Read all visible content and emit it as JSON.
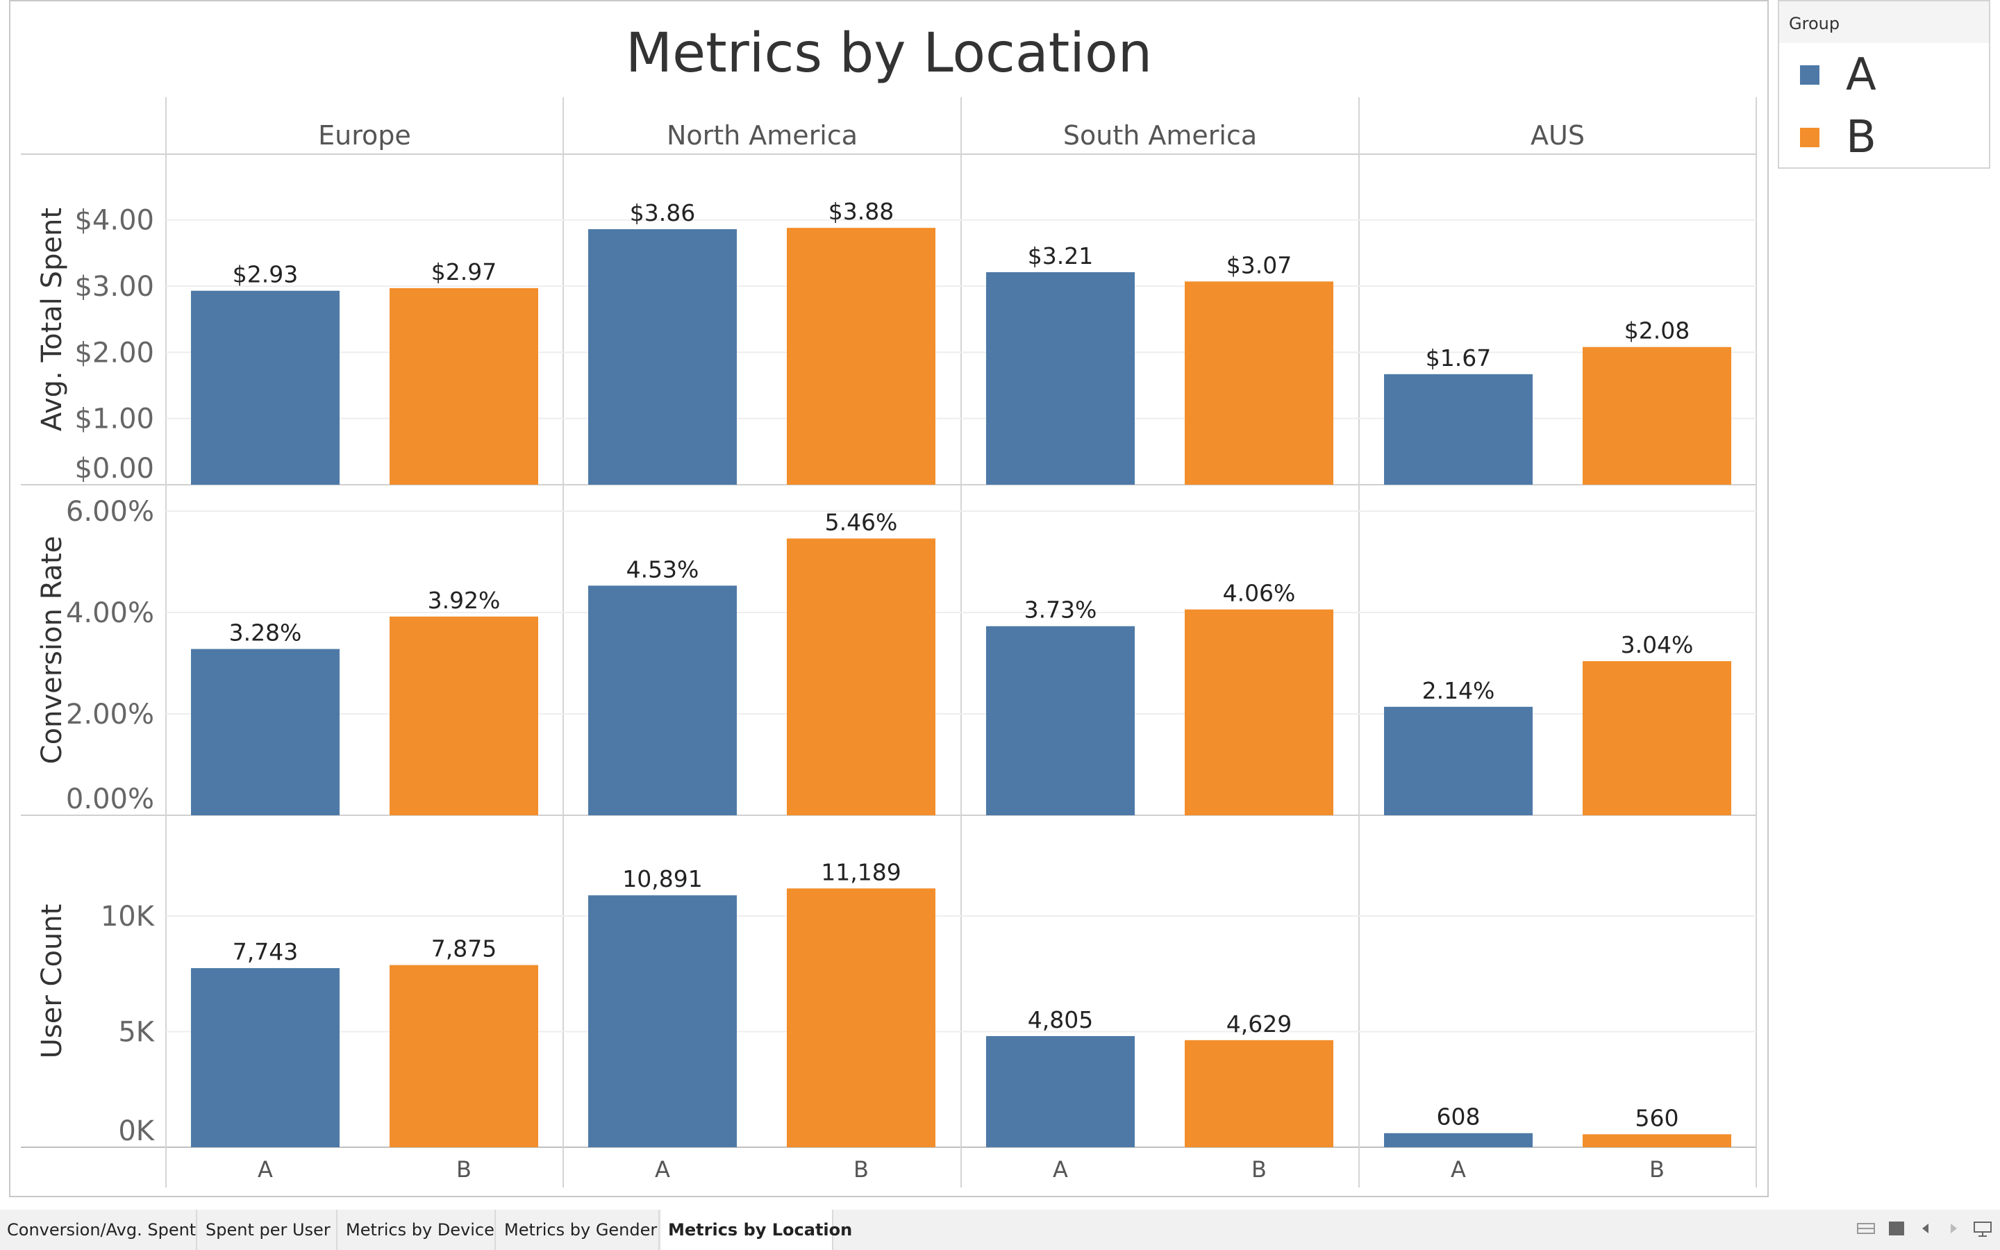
{
  "window": {
    "title": "Metrics by Location"
  },
  "legend": {
    "title": "Group",
    "items": [
      {
        "label": "A",
        "color": "#4e79a7"
      },
      {
        "label": "B",
        "color": "#f28e2b"
      }
    ]
  },
  "tabs": [
    {
      "label": "Conversion/Avg. Spent",
      "active": false
    },
    {
      "label": "Spent per User",
      "active": false
    },
    {
      "label": "Metrics by Device",
      "active": false
    },
    {
      "label": "Metrics by Gender",
      "active": false
    },
    {
      "label": "Metrics by Location",
      "active": true
    }
  ],
  "nav_icons": [
    "grid-view-icon",
    "single-view-icon",
    "previous-icon",
    "next-icon",
    "presentation-icon"
  ],
  "chart_data": {
    "type": "bar",
    "title": "Metrics by Location",
    "columns": [
      "Europe",
      "North America",
      "South America",
      "AUS"
    ],
    "categories": [
      "A",
      "B"
    ],
    "colors": {
      "A": "#4e79a7",
      "B": "#f28e2b"
    },
    "rows": [
      {
        "ylabel": "Avg. Total Spent",
        "ylim": [
          0,
          4.5
        ],
        "ticks": [
          0,
          1,
          2,
          3,
          4
        ],
        "tick_labels": [
          "$0.00",
          "$1.00",
          "$2.00",
          "$3.00",
          "$4.00"
        ],
        "values": [
          [
            2.93,
            2.97
          ],
          [
            3.86,
            3.88
          ],
          [
            3.21,
            3.07
          ],
          [
            1.67,
            2.08
          ]
        ],
        "labels": [
          [
            "$2.93",
            "$2.97"
          ],
          [
            "$3.86",
            "$3.88"
          ],
          [
            "$3.21",
            "$3.07"
          ],
          [
            "$1.67",
            "$2.08"
          ]
        ]
      },
      {
        "ylabel": "Conversion Rate",
        "ylim": [
          0,
          6.0
        ],
        "ticks": [
          0,
          2,
          4,
          6
        ],
        "tick_labels": [
          "0.00%",
          "2.00%",
          "4.00%",
          "6.00%"
        ],
        "values": [
          [
            3.28,
            3.92
          ],
          [
            4.53,
            5.46
          ],
          [
            3.73,
            4.06
          ],
          [
            2.14,
            3.04
          ]
        ],
        "labels": [
          [
            "3.28%",
            "3.92%"
          ],
          [
            "4.53%",
            "5.46%"
          ],
          [
            "3.73%",
            "4.06%"
          ],
          [
            "2.14%",
            "3.04%"
          ]
        ]
      },
      {
        "ylabel": "User Count",
        "ylim": [
          0,
          13000
        ],
        "ticks": [
          0,
          5000,
          10000
        ],
        "tick_labels": [
          "0K",
          "5K",
          "10K"
        ],
        "values": [
          [
            7743,
            7875
          ],
          [
            10891,
            11189
          ],
          [
            4805,
            4629
          ],
          [
            608,
            560
          ]
        ],
        "labels": [
          [
            "7,743",
            "7,875"
          ],
          [
            "10,891",
            "11,189"
          ],
          [
            "4,805",
            "4,629"
          ],
          [
            "608",
            "560"
          ]
        ]
      }
    ]
  }
}
